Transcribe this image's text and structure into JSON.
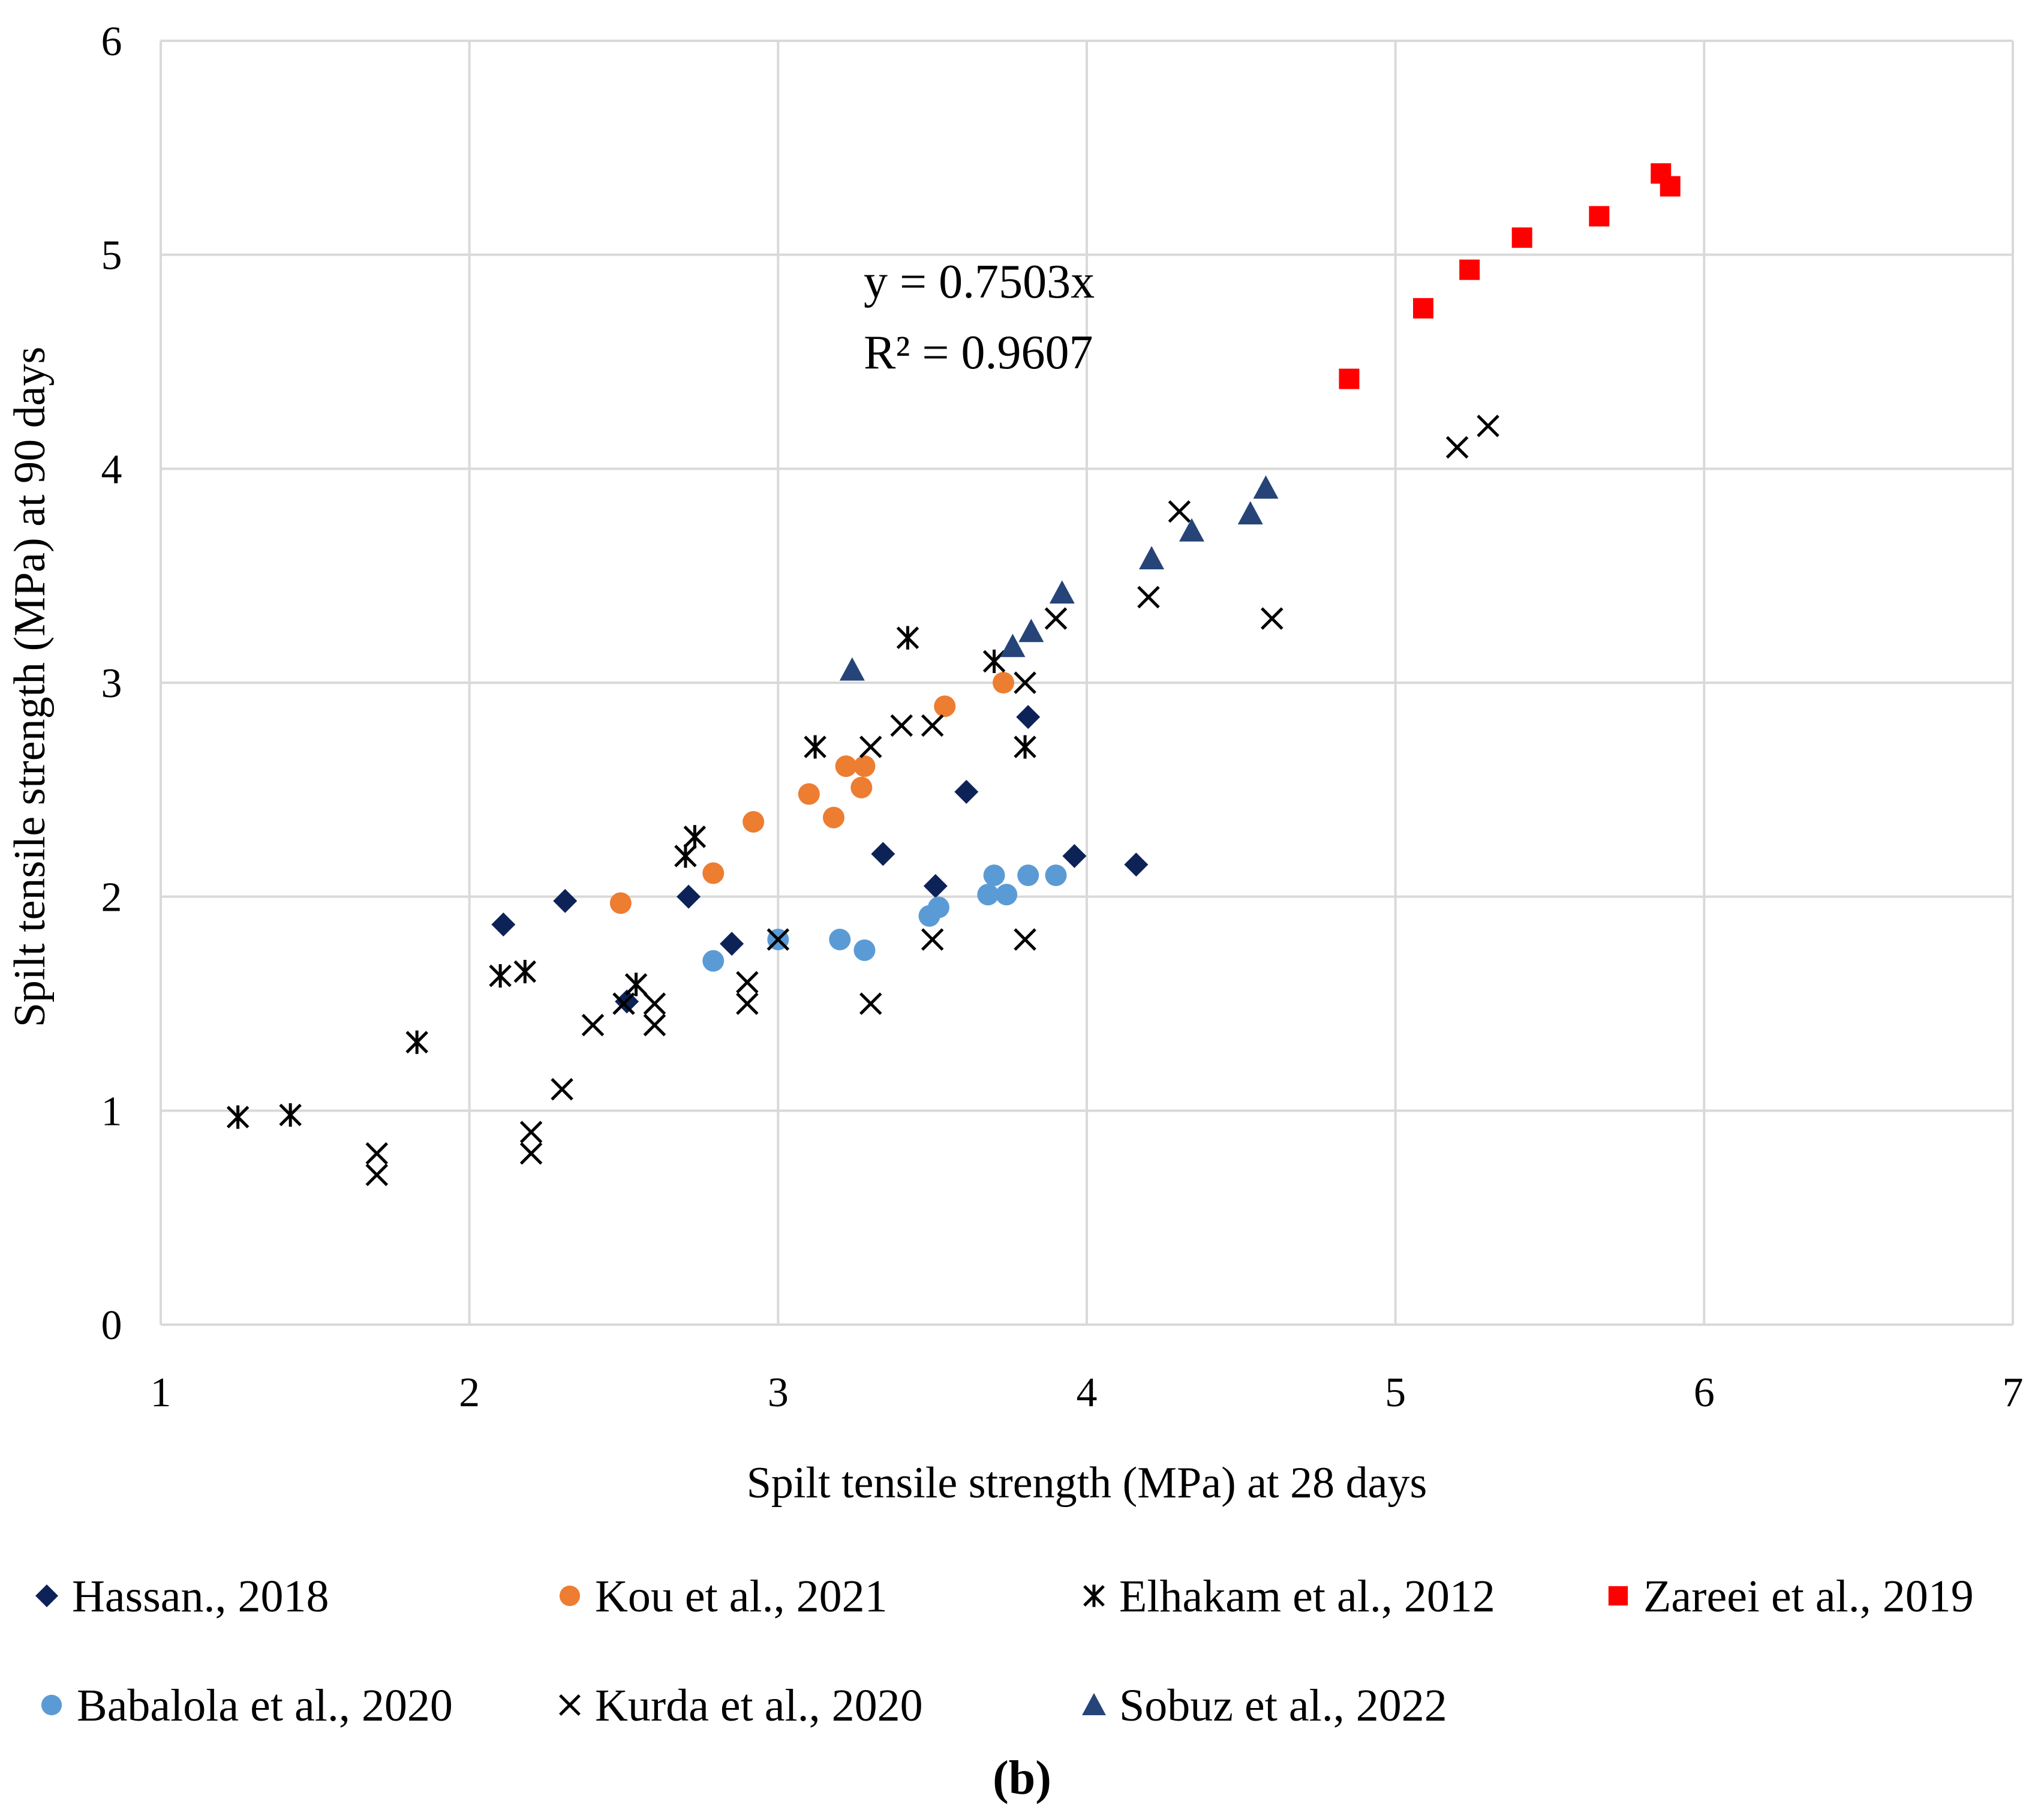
{
  "chart_data": {
    "type": "scatter",
    "title": "",
    "xlabel": "Spilt tensile strength (MPa) at 28 days",
    "ylabel": "Spilt tensile strength (MPa) at 90 days",
    "xlim": [
      1,
      7
    ],
    "ylim": [
      0,
      6
    ],
    "xticks": [
      "1",
      "2",
      "3",
      "4",
      "5",
      "6",
      "7"
    ],
    "yticks": [
      "0",
      "1",
      "2",
      "3",
      "4",
      "5",
      "6"
    ],
    "grid": true,
    "legend_position": "bottom",
    "annotation": {
      "equation": "y = 0.7503x",
      "r_squared": "R² = 0.9607"
    },
    "caption": "(b)",
    "series": [
      {
        "name": "Hassan., 2018",
        "marker": "diamond",
        "color": "#0d2358",
        "points": [
          [
            2.11,
            1.87
          ],
          [
            2.31,
            1.98
          ],
          [
            2.51,
            1.51
          ],
          [
            2.71,
            2.0
          ],
          [
            2.85,
            1.78
          ],
          [
            3.34,
            2.2
          ],
          [
            3.51,
            2.05
          ],
          [
            3.61,
            2.49
          ],
          [
            3.81,
            2.84
          ],
          [
            3.96,
            2.19
          ],
          [
            4.16,
            2.15
          ]
        ]
      },
      {
        "name": "Kou et al., 2021",
        "marker": "circle",
        "color": "#ed7d31",
        "points": [
          [
            2.49,
            1.97
          ],
          [
            2.79,
            2.11
          ],
          [
            2.92,
            2.35
          ],
          [
            3.1,
            2.48
          ],
          [
            3.18,
            2.37
          ],
          [
            3.22,
            2.61
          ],
          [
            3.27,
            2.51
          ],
          [
            3.28,
            2.61
          ],
          [
            3.54,
            2.89
          ],
          [
            3.73,
            3.0
          ]
        ]
      },
      {
        "name": "Elhakam et al., 2012",
        "marker": "asterisk-x",
        "color": "#000000",
        "points": [
          [
            1.25,
            0.97
          ],
          [
            1.42,
            0.98
          ],
          [
            1.83,
            1.32
          ],
          [
            2.1,
            1.63
          ],
          [
            2.18,
            1.65
          ],
          [
            2.54,
            1.59
          ],
          [
            2.7,
            2.19
          ],
          [
            2.73,
            2.28
          ],
          [
            3.12,
            2.7
          ],
          [
            3.42,
            3.21
          ],
          [
            3.7,
            3.1
          ],
          [
            3.8,
            2.7
          ]
        ]
      },
      {
        "name": "Zareei et al., 2019",
        "marker": "square",
        "color": "#ff0000",
        "points": [
          [
            4.85,
            4.42
          ],
          [
            5.09,
            4.75
          ],
          [
            5.24,
            4.93
          ],
          [
            5.41,
            5.08
          ],
          [
            5.66,
            5.18
          ],
          [
            5.86,
            5.38
          ],
          [
            5.89,
            5.32
          ]
        ]
      },
      {
        "name": "Babalola et al., 2020",
        "marker": "circle",
        "color": "#5b9bd5",
        "points": [
          [
            2.79,
            1.7
          ],
          [
            3.0,
            1.8
          ],
          [
            3.2,
            1.8
          ],
          [
            3.28,
            1.75
          ],
          [
            3.49,
            1.91
          ],
          [
            3.52,
            1.95
          ],
          [
            3.68,
            2.01
          ],
          [
            3.7,
            2.1
          ],
          [
            3.74,
            2.01
          ],
          [
            3.81,
            2.1
          ],
          [
            3.9,
            2.1
          ]
        ]
      },
      {
        "name": "Kurda et al., 2020",
        "marker": "x",
        "color": "#000000",
        "points": [
          [
            1.7,
            0.8
          ],
          [
            1.7,
            0.7
          ],
          [
            2.2,
            0.9
          ],
          [
            2.2,
            0.8
          ],
          [
            2.3,
            1.1
          ],
          [
            2.4,
            1.4
          ],
          [
            2.5,
            1.5
          ],
          [
            2.6,
            1.5
          ],
          [
            2.6,
            1.4
          ],
          [
            2.9,
            1.6
          ],
          [
            2.9,
            1.5
          ],
          [
            3.0,
            1.8
          ],
          [
            3.3,
            1.5
          ],
          [
            3.3,
            2.7
          ],
          [
            3.4,
            2.8
          ],
          [
            3.5,
            2.8
          ],
          [
            3.5,
            1.8
          ],
          [
            3.8,
            3.0
          ],
          [
            3.8,
            1.8
          ],
          [
            3.9,
            3.3
          ],
          [
            4.2,
            3.4
          ],
          [
            4.3,
            3.8
          ],
          [
            4.6,
            3.3
          ],
          [
            5.2,
            4.1
          ],
          [
            5.3,
            4.2
          ]
        ]
      },
      {
        "name": "Sobuz et al., 2022",
        "marker": "triangle",
        "color": "#264478",
        "points": [
          [
            3.24,
            3.06
          ],
          [
            3.76,
            3.17
          ],
          [
            3.82,
            3.24
          ],
          [
            3.92,
            3.42
          ],
          [
            4.21,
            3.58
          ],
          [
            4.34,
            3.71
          ],
          [
            4.53,
            3.79
          ],
          [
            4.58,
            3.91
          ]
        ]
      }
    ]
  }
}
